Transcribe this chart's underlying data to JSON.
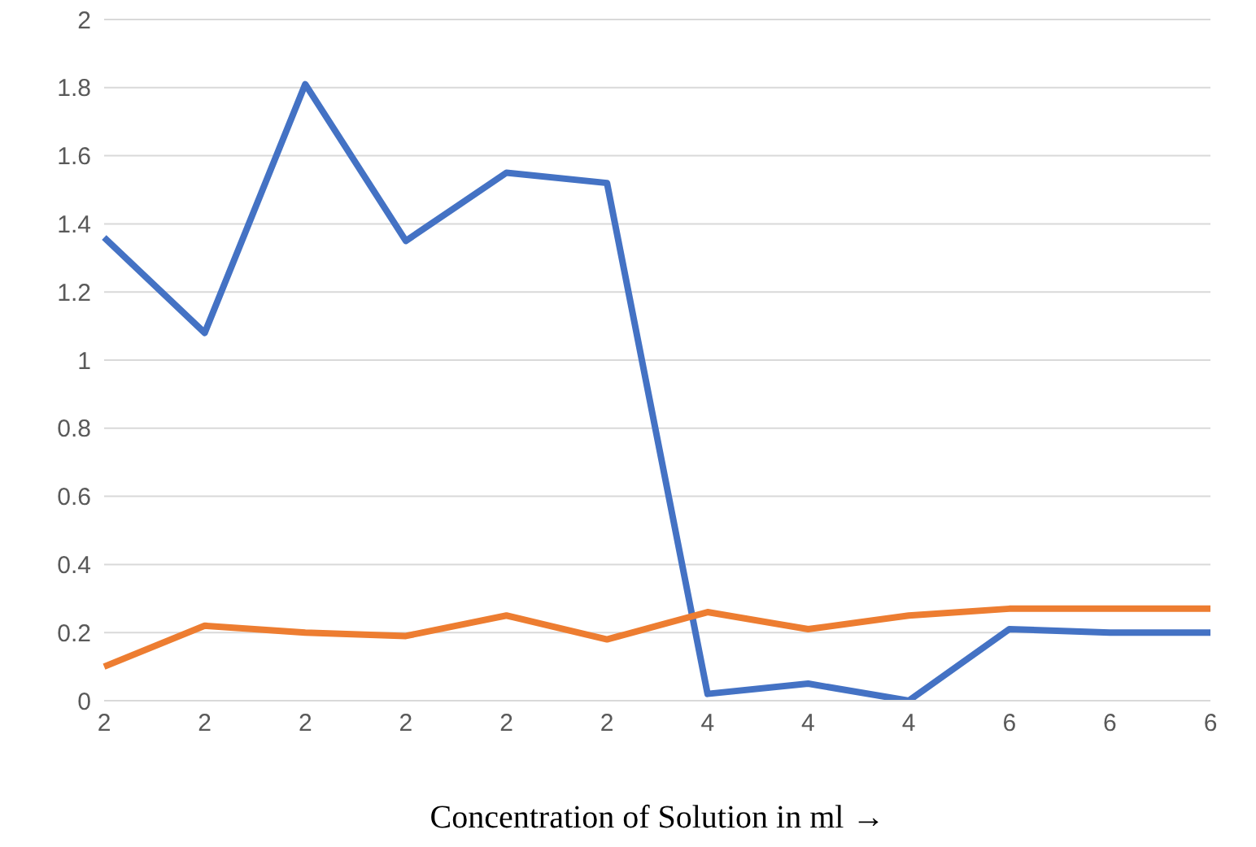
{
  "chart_data": {
    "type": "line",
    "xlabel": "Concentration of Solution in ml →",
    "categories": [
      "2",
      "2",
      "2",
      "2",
      "2",
      "2",
      "4",
      "4",
      "4",
      "6",
      "6",
      "6"
    ],
    "series": [
      {
        "color": "#4472c4",
        "values": [
          1.36,
          1.08,
          1.81,
          1.35,
          1.55,
          1.52,
          0.02,
          0.05,
          0.0,
          0.21,
          0.2,
          0.2
        ]
      },
      {
        "color": "#ed7d31",
        "values": [
          0.1,
          0.22,
          0.2,
          0.19,
          0.25,
          0.18,
          0.26,
          0.21,
          0.25,
          0.27,
          0.27,
          0.27
        ]
      }
    ],
    "ylim": [
      0,
      2
    ],
    "yticks": [
      0,
      0.2,
      0.4,
      0.6,
      0.8,
      1,
      1.2,
      1.4,
      1.6,
      1.8,
      2
    ],
    "grid": "y",
    "legend": false,
    "marker": "none",
    "line_style": "solid"
  }
}
